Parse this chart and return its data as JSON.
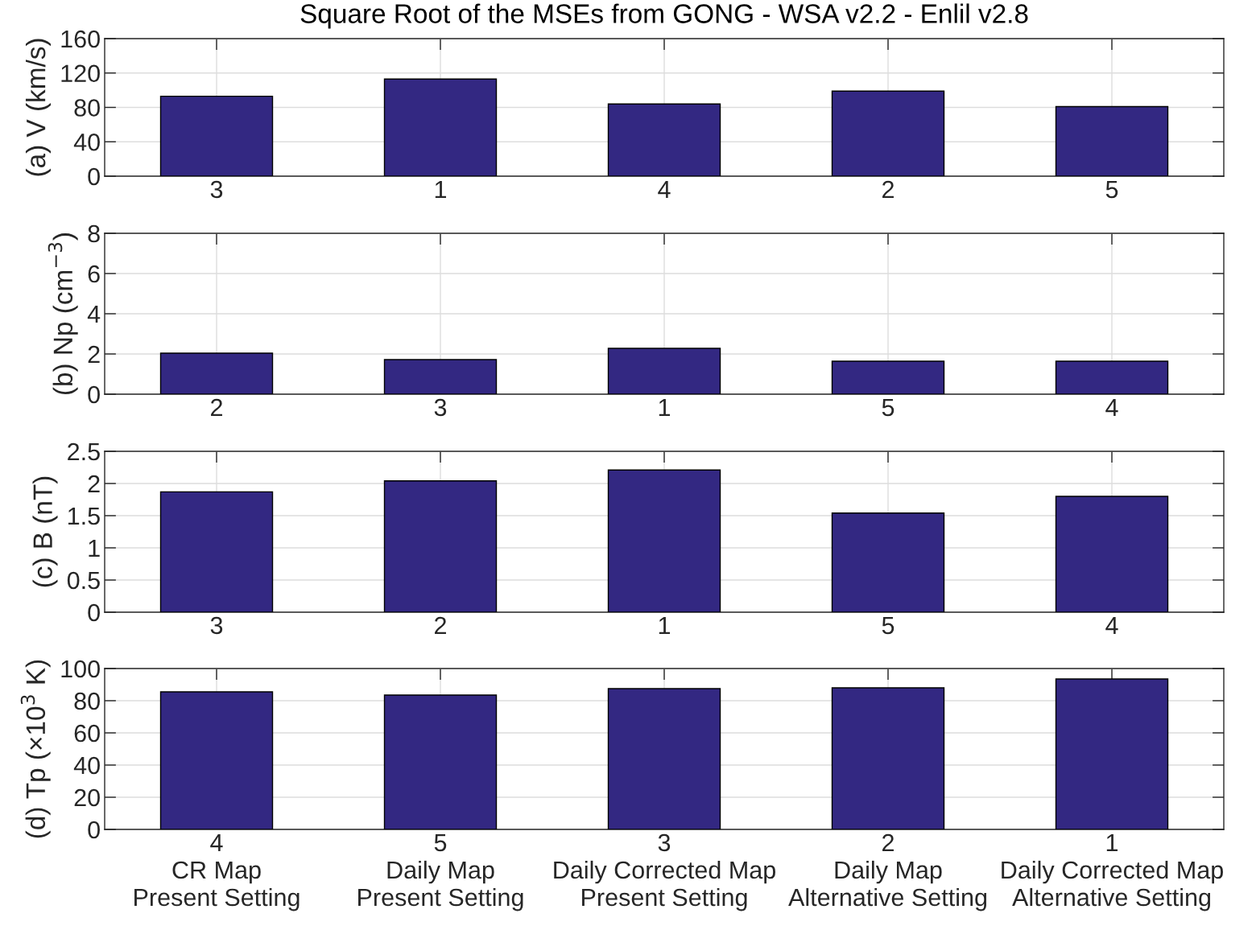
{
  "chart_data": [
    {
      "type": "bar",
      "title": "Square Root of the MSEs from GONG - WSA v2.2 - Enlil v2.8",
      "ylabel": "(a) V (km/s)",
      "categories": [
        "3",
        "1",
        "4",
        "2",
        "5"
      ],
      "values": [
        93,
        113,
        84,
        99,
        81
      ],
      "color": "#332882",
      "ylim": [
        0,
        160
      ],
      "yticks": [
        0,
        40,
        80,
        120,
        160
      ],
      "grid": true
    },
    {
      "type": "bar",
      "ylabel": "(b) Np (cm$^{−3}$)",
      "categories": [
        "2",
        "3",
        "1",
        "5",
        "4"
      ],
      "values": [
        2.04,
        1.72,
        2.28,
        1.64,
        1.64
      ],
      "color": "#332882",
      "ylim": [
        0,
        8
      ],
      "yticks": [
        0,
        2,
        4,
        6,
        8
      ],
      "grid": true
    },
    {
      "type": "bar",
      "ylabel": "(c) B (nT)",
      "categories": [
        "3",
        "2",
        "1",
        "5",
        "4"
      ],
      "values": [
        1.87,
        2.04,
        2.21,
        1.54,
        1.8
      ],
      "color": "#332882",
      "ylim": [
        0,
        2.5
      ],
      "yticks": [
        0,
        {
          "value": 0.5,
          "label": "0.5"
        },
        1,
        {
          "value": 1.5,
          "label": "1.5"
        },
        2,
        {
          "value": 2.5,
          "label": "2.5"
        }
      ],
      "grid": true
    },
    {
      "type": "bar",
      "ylabel": "(d) Tp (×10$^{3}$ K)",
      "categories": [
        "4\nCR Map\nPresent Setting",
        "5\nDaily Map\nPresent Setting",
        "3\nDaily Corrected Map\nPresent Setting",
        "2\nDaily Map\nAlternative Setting",
        "1\nDaily Corrected Map\nAlternative Setting"
      ],
      "values": [
        85.5,
        83.5,
        87.5,
        88,
        93.5
      ],
      "color": "#332882",
      "ylim": [
        0,
        100
      ],
      "yticks": [
        0,
        20,
        40,
        60,
        80,
        100
      ],
      "grid": true
    }
  ]
}
